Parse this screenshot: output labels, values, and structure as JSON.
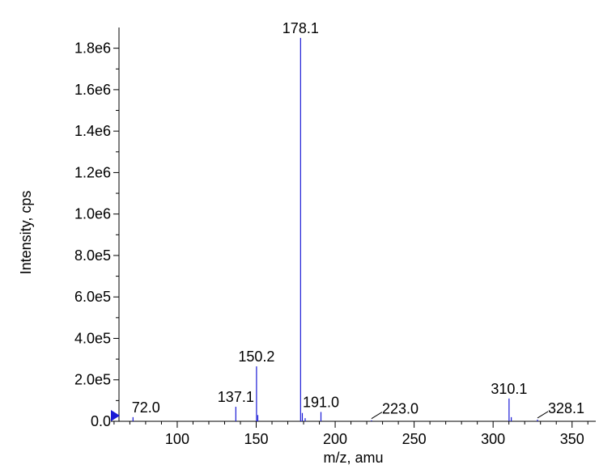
{
  "chart_data": {
    "type": "bar",
    "title": "",
    "xlabel": "m/z, amu",
    "ylabel": "Intensity, cps",
    "xlim": [
      58,
      365
    ],
    "ylim": [
      0,
      1900000
    ],
    "x_ticks": [
      100,
      150,
      200,
      250,
      300,
      350
    ],
    "x_tick_labels": [
      "100",
      "150",
      "200",
      "250",
      "300",
      "350"
    ],
    "y_ticks": [
      0,
      200000,
      400000,
      600000,
      800000,
      1000000,
      1200000,
      1400000,
      1600000,
      1800000
    ],
    "y_tick_labels": [
      "0.0",
      "2.0e5",
      "4.0e5",
      "6.0e5",
      "8.0e5",
      "1.0e6",
      "1.2e6",
      "1.4e6",
      "1.6e6",
      "1.8e6"
    ],
    "color": "#1a1ad6",
    "peaks": [
      {
        "mz": 72.0,
        "intensity": 20000
      },
      {
        "mz": 137.1,
        "intensity": 70000
      },
      {
        "mz": 150.2,
        "intensity": 265000
      },
      {
        "mz": 151.0,
        "intensity": 30000
      },
      {
        "mz": 178.1,
        "intensity": 1850000
      },
      {
        "mz": 179.2,
        "intensity": 40000
      },
      {
        "mz": 181.0,
        "intensity": 15000
      },
      {
        "mz": 191.0,
        "intensity": 45000
      },
      {
        "mz": 223.0,
        "intensity": 5000
      },
      {
        "mz": 310.1,
        "intensity": 110000
      },
      {
        "mz": 311.5,
        "intensity": 20000
      },
      {
        "mz": 328.1,
        "intensity": 8000
      }
    ],
    "annotations": [
      {
        "text": "72.0",
        "mz": 72.0,
        "leader": false
      },
      {
        "text": "137.1",
        "mz": 137.1,
        "leader": false
      },
      {
        "text": "150.2",
        "mz": 150.2,
        "leader": false
      },
      {
        "text": "178.1",
        "mz": 178.1,
        "leader": false
      },
      {
        "text": "191.0",
        "mz": 191.0,
        "leader": false
      },
      {
        "text": "223.0",
        "mz": 223.0,
        "leader": true
      },
      {
        "text": "310.1",
        "mz": 310.1,
        "leader": false
      },
      {
        "text": "328.1",
        "mz": 328.1,
        "leader": true
      }
    ]
  }
}
